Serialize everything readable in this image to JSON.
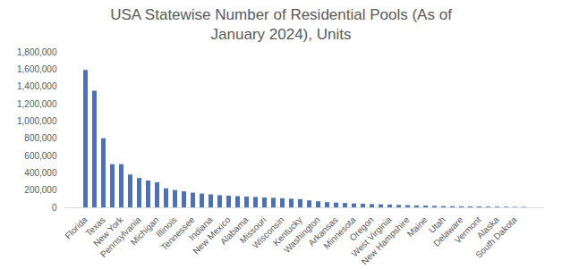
{
  "chart_data": {
    "type": "bar",
    "title": "USA Statewise Number of Residential Pools (As of January 2024), Units",
    "categories": [
      "Florida",
      null,
      "Texas",
      null,
      "New York",
      null,
      "Pennsylvania",
      null,
      "Michigan",
      null,
      "Illinois",
      null,
      "Tennessee",
      null,
      "Indiana",
      null,
      "New Mexico",
      null,
      "Alabama",
      null,
      "Missouri",
      null,
      "Wisconsin",
      null,
      "Kentucky",
      null,
      "Washington",
      null,
      "Arkansas",
      null,
      "Minnesota",
      null,
      "Oregon",
      null,
      "West Virginia",
      null,
      "New Hampshire",
      null,
      "Maine",
      null,
      "Utah",
      null,
      "Delaware",
      null,
      "Vermont",
      null,
      "Alaska",
      null,
      "South Dakota",
      null
    ],
    "values": [
      1590000,
      1350000,
      800000,
      500000,
      500000,
      380000,
      340000,
      310000,
      290000,
      220000,
      200000,
      185000,
      170000,
      160000,
      150000,
      140000,
      135000,
      130000,
      125000,
      120000,
      115000,
      110000,
      105000,
      100000,
      95000,
      80000,
      70000,
      60000,
      55000,
      50000,
      45000,
      42000,
      38000,
      35000,
      32000,
      28000,
      25000,
      22000,
      20000,
      17000,
      15000,
      13000,
      12000,
      11000,
      10000,
      9000,
      8000,
      7000,
      6000,
      5000
    ],
    "color": "#4472c4",
    "ylim": [
      0,
      1800000
    ],
    "yticks": [
      0,
      {
        "value": 200000,
        "label": "200,000"
      },
      {
        "value": 400000,
        "label": "400,000"
      },
      {
        "value": 600000,
        "label": "600,000"
      },
      {
        "value": 800000,
        "label": "800,000"
      },
      {
        "value": 1000000,
        "label": "1,000,000"
      },
      {
        "value": 1200000,
        "label": "1,200,000"
      },
      {
        "value": 1400000,
        "label": "1,400,000"
      },
      {
        "value": 1600000,
        "label": "1,600,000"
      },
      {
        "value": 1800000,
        "label": "1,800,000"
      }
    ],
    "grid": false
  }
}
